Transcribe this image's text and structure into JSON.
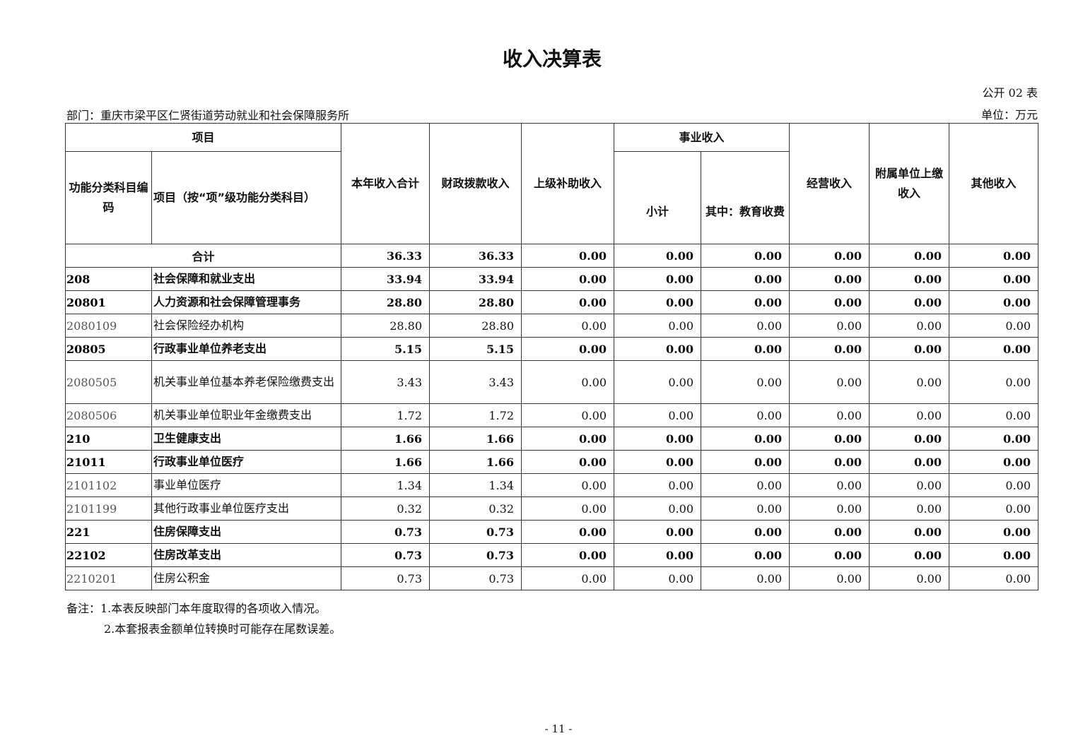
{
  "title": "收入决算表",
  "form_no": "公开 02 表",
  "department": "部门：重庆市梁平区仁贤街道劳动就业和社会保障服务所",
  "unit": "单位：万元",
  "headers": {
    "item": "项目",
    "code": "功能分类科目编码",
    "name": "项目（按“项”级功能分类科目）",
    "total": "本年收入合计",
    "fiscal": "财政拨款收入",
    "superior": "上级补助收入",
    "business": "事业收入",
    "subtotal": "小计",
    "education": "其中：教育收费",
    "operating": "经营收入",
    "affiliated": "附属单位上缴收入",
    "other": "其他收入"
  },
  "total_row": {
    "label": "合计",
    "values": [
      "36.33",
      "36.33",
      "0.00",
      "0.00",
      "0.00",
      "0.00",
      "0.00",
      "0.00"
    ]
  },
  "rows": [
    {
      "code": "208",
      "name": "社会保障和就业支出",
      "bold": true,
      "values": [
        "33.94",
        "33.94",
        "0.00",
        "0.00",
        "0.00",
        "0.00",
        "0.00",
        "0.00"
      ]
    },
    {
      "code": "20801",
      "name": "人力资源和社会保障管理事务",
      "bold": true,
      "values": [
        "28.80",
        "28.80",
        "0.00",
        "0.00",
        "0.00",
        "0.00",
        "0.00",
        "0.00"
      ]
    },
    {
      "code": "2080109",
      "name": "社会保险经办机构",
      "bold": false,
      "values": [
        "28.80",
        "28.80",
        "0.00",
        "0.00",
        "0.00",
        "0.00",
        "0.00",
        "0.00"
      ]
    },
    {
      "code": "20805",
      "name": "行政事业单位养老支出",
      "bold": true,
      "values": [
        "5.15",
        "5.15",
        "0.00",
        "0.00",
        "0.00",
        "0.00",
        "0.00",
        "0.00"
      ]
    },
    {
      "code": "2080505",
      "name": "机关事业单位基本养老保险缴费支出",
      "bold": false,
      "tall": true,
      "values": [
        "3.43",
        "3.43",
        "0.00",
        "0.00",
        "0.00",
        "0.00",
        "0.00",
        "0.00"
      ]
    },
    {
      "code": "2080506",
      "name": "机关事业单位职业年金缴费支出",
      "bold": false,
      "values": [
        "1.72",
        "1.72",
        "0.00",
        "0.00",
        "0.00",
        "0.00",
        "0.00",
        "0.00"
      ]
    },
    {
      "code": "210",
      "name": "卫生健康支出",
      "bold": true,
      "values": [
        "1.66",
        "1.66",
        "0.00",
        "0.00",
        "0.00",
        "0.00",
        "0.00",
        "0.00"
      ]
    },
    {
      "code": "21011",
      "name": "行政事业单位医疗",
      "bold": true,
      "values": [
        "1.66",
        "1.66",
        "0.00",
        "0.00",
        "0.00",
        "0.00",
        "0.00",
        "0.00"
      ]
    },
    {
      "code": "2101102",
      "name": "事业单位医疗",
      "bold": false,
      "values": [
        "1.34",
        "1.34",
        "0.00",
        "0.00",
        "0.00",
        "0.00",
        "0.00",
        "0.00"
      ]
    },
    {
      "code": "2101199",
      "name": "其他行政事业单位医疗支出",
      "bold": false,
      "values": [
        "0.32",
        "0.32",
        "0.00",
        "0.00",
        "0.00",
        "0.00",
        "0.00",
        "0.00"
      ]
    },
    {
      "code": "221",
      "name": "住房保障支出",
      "bold": true,
      "values": [
        "0.73",
        "0.73",
        "0.00",
        "0.00",
        "0.00",
        "0.00",
        "0.00",
        "0.00"
      ]
    },
    {
      "code": "22102",
      "name": "住房改革支出",
      "bold": true,
      "values": [
        "0.73",
        "0.73",
        "0.00",
        "0.00",
        "0.00",
        "0.00",
        "0.00",
        "0.00"
      ]
    },
    {
      "code": "2210201",
      "name": "住房公积金",
      "bold": false,
      "values": [
        "0.73",
        "0.73",
        "0.00",
        "0.00",
        "0.00",
        "0.00",
        "0.00",
        "0.00"
      ]
    }
  ],
  "notes": [
    "备注：1.本表反映部门本年度取得的各项收入情况。",
    "2.本套报表金额单位转换时可能存在尾数误差。"
  ],
  "page_number": "- 11 -"
}
